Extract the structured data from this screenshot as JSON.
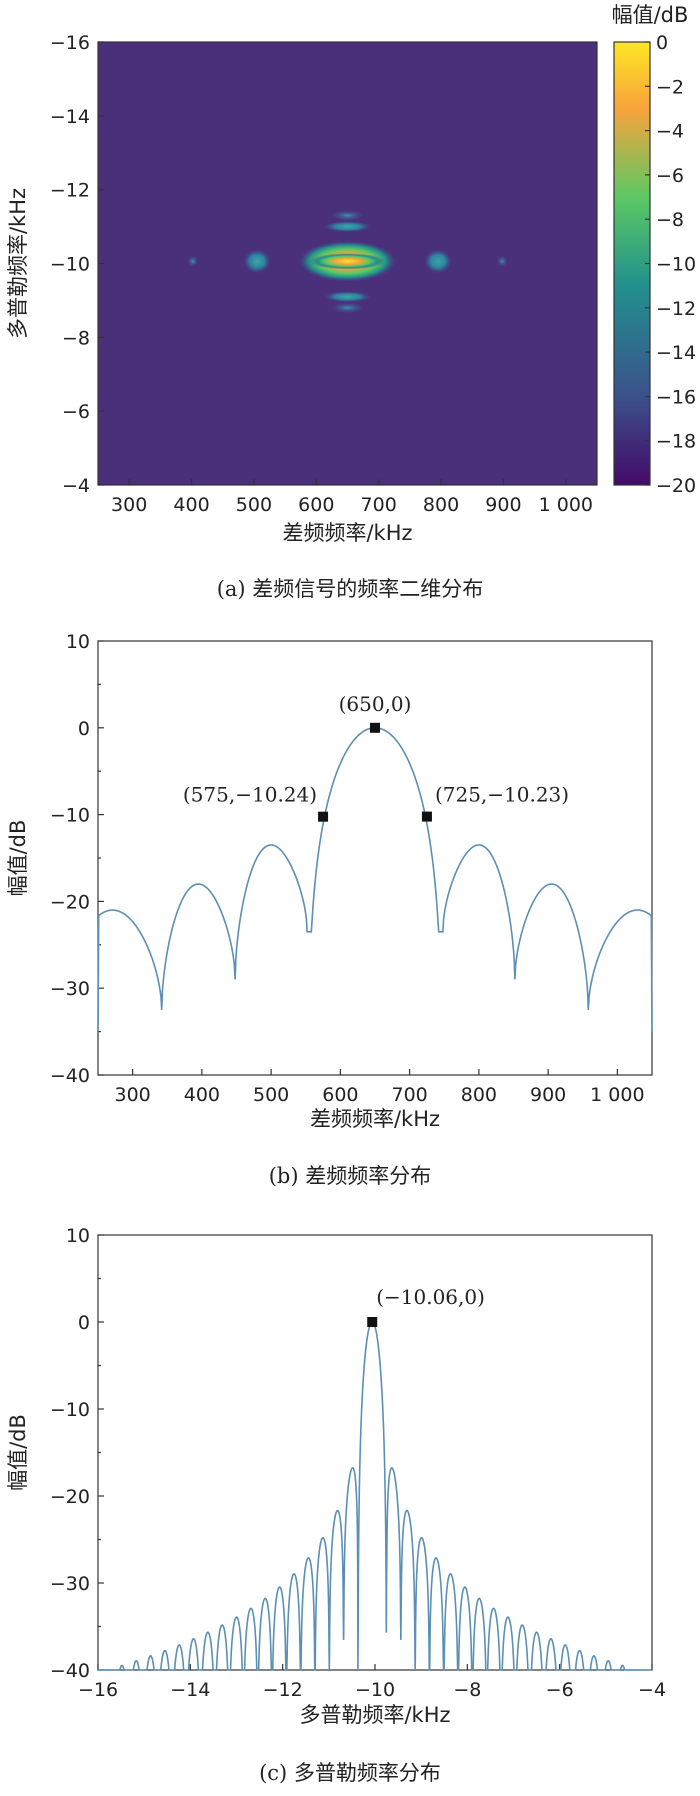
{
  "chart_data": [
    {
      "type": "heatmap",
      "caption": "(a) 差频信号的频率二维分布",
      "xlabel": "差频频率/kHz",
      "ylabel": "多普勒频率/kHz",
      "xlim": [
        250,
        1050
      ],
      "ylim": [
        -16,
        -4
      ],
      "y_inverted": true,
      "x_ticks": [
        300,
        400,
        500,
        600,
        700,
        800,
        900,
        1000
      ],
      "x_tick_labels": [
        "300",
        "400",
        "500",
        "600",
        "700",
        "800",
        "900",
        "1 000"
      ],
      "y_ticks": [
        -16,
        -14,
        -12,
        -10,
        -8,
        -6,
        -4
      ],
      "y_tick_labels": [
        "−16",
        "−14",
        "−12",
        "−10",
        "−8",
        "−6",
        "−4"
      ],
      "colorbar": {
        "label": "幅值/dB",
        "range": [
          -20,
          0
        ],
        "ticks": [
          0,
          -2,
          -4,
          -6,
          -8,
          -10,
          -12,
          -14,
          -16,
          -18,
          -20
        ],
        "tick_labels": [
          "0",
          "−2",
          "−4",
          "−6",
          "−8",
          "−10",
          "−12",
          "−14",
          "−16",
          "−18",
          "−20"
        ],
        "colormap": [
          "#440a68",
          "#3b518b",
          "#21908d",
          "#5cc863",
          "#f8a33a",
          "#fde725"
        ]
      },
      "background_value": -20,
      "background_color": "#4a2f7a",
      "peak": {
        "x": 650,
        "y": -10.06,
        "value": 0
      },
      "blobs": [
        {
          "x": 650,
          "y": -10.06,
          "wx": 78,
          "wy": 0.55,
          "value": 0
        },
        {
          "x": 650,
          "y": -10.06,
          "wx": 60,
          "wy": 0.22,
          "value": -2
        },
        {
          "x": 505,
          "y": -10.06,
          "wx": 22,
          "wy": 0.33,
          "value": -14
        },
        {
          "x": 795,
          "y": -10.06,
          "wx": 22,
          "wy": 0.33,
          "value": -14
        },
        {
          "x": 402,
          "y": -10.06,
          "wx": 9,
          "wy": 0.16,
          "value": -17
        },
        {
          "x": 898,
          "y": -10.06,
          "wx": 9,
          "wy": 0.16,
          "value": -17
        },
        {
          "x": 650,
          "y": -11.3,
          "wx": 28,
          "wy": 0.15,
          "value": -15
        },
        {
          "x": 650,
          "y": -11.0,
          "wx": 38,
          "wy": 0.15,
          "value": -14
        },
        {
          "x": 650,
          "y": -9.1,
          "wx": 38,
          "wy": 0.15,
          "value": -14
        },
        {
          "x": 650,
          "y": -8.8,
          "wx": 28,
          "wy": 0.15,
          "value": -15
        }
      ]
    },
    {
      "type": "line",
      "caption": "(b) 差频频率分布",
      "xlabel": "差频频率/kHz",
      "ylabel": "幅值/dB",
      "xlim": [
        250,
        1050
      ],
      "ylim": [
        -40,
        10
      ],
      "x_ticks": [
        300,
        400,
        500,
        600,
        700,
        800,
        900,
        1000
      ],
      "x_tick_labels": [
        "300",
        "400",
        "500",
        "600",
        "700",
        "800",
        "900",
        "1 000"
      ],
      "y_ticks": [
        10,
        0,
        -10,
        -20,
        -30,
        -40
      ],
      "y_tick_labels": [
        "10",
        "0",
        "−10",
        "−20",
        "−30",
        "−40"
      ],
      "grid": false,
      "sidelobe_nulls_x": [
        342,
        448,
        552,
        748,
        852,
        958
      ],
      "sidelobe_peaks": [
        {
          "x": 295,
          "y": -21
        },
        {
          "x": 402,
          "y": -18
        },
        {
          "x": 505,
          "y": -13.5
        },
        {
          "x": 795,
          "y": -13.5
        },
        {
          "x": 898,
          "y": -18
        },
        {
          "x": 1005,
          "y": -21
        }
      ],
      "main_lobe": {
        "center": 650,
        "null_left": 552,
        "null_right": 748,
        "peak": 0
      },
      "curve_color": "#5b8fb3",
      "annotations": [
        {
          "x": 650,
          "y": 0,
          "label": "(650,0)"
        },
        {
          "x": 575,
          "y": -10.24,
          "label": "(575,−10.24)"
        },
        {
          "x": 725,
          "y": -10.23,
          "label": "(725,−10.23)"
        }
      ]
    },
    {
      "type": "line",
      "caption": "(c) 多普勒频率分布",
      "xlabel": "多普勒频率/kHz",
      "ylabel": "幅值/dB",
      "xlim": [
        -16,
        -4
      ],
      "ylim": [
        -40,
        10
      ],
      "x_ticks": [
        -16,
        -14,
        -12,
        -10,
        -8,
        -6,
        -4
      ],
      "x_tick_labels": [
        "−16",
        "−14",
        "−12",
        "−10",
        "−8",
        "−6",
        "−4"
      ],
      "y_ticks": [
        10,
        0,
        -10,
        -20,
        -30,
        -40
      ],
      "y_tick_labels": [
        "10",
        "0",
        "−10",
        "−20",
        "−30",
        "−40"
      ],
      "grid": false,
      "center": -10.06,
      "null_spacing": 0.31,
      "curve_color": "#5b8fb3",
      "annotations": [
        {
          "x": -10.06,
          "y": 0,
          "label": "(−10.06,0)"
        }
      ]
    }
  ]
}
